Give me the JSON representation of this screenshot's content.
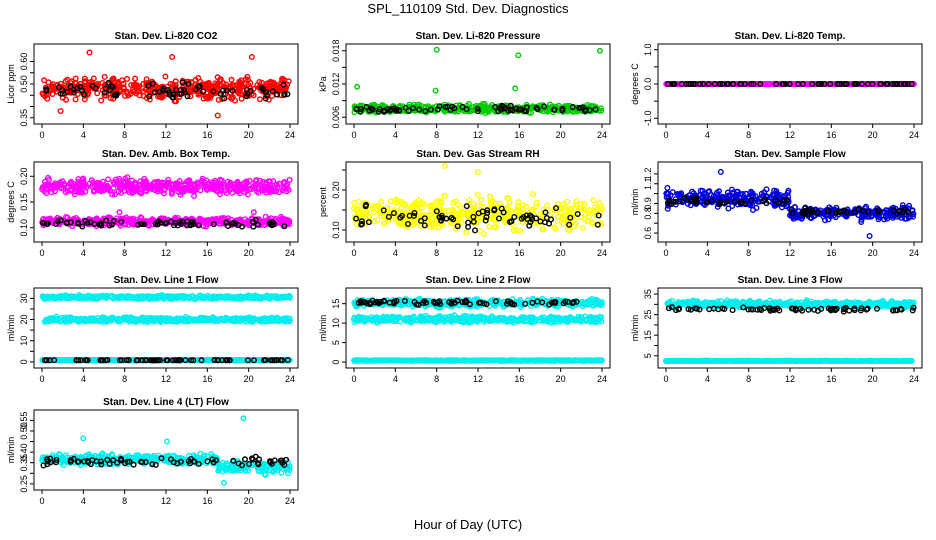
{
  "page": {
    "title": "SPL_110109  Std. Dev. Diagnostics",
    "x_title": "Hour of Day (UTC)"
  },
  "chart_data": [
    {
      "type": "scatter",
      "title": "Stan. Dev. Li-820 CO2",
      "ylabel": "Licor ppm",
      "xlim": [
        0,
        24
      ],
      "ylim": [
        0.34,
        0.66
      ],
      "x_ticks": [
        0,
        4,
        8,
        12,
        16,
        20,
        24
      ],
      "y_ticks": [
        0.35,
        0.4,
        0.45,
        0.5,
        0.55,
        0.6
      ],
      "y_tick_labels": [
        "0.35",
        "",
        "",
        "0.50",
        "",
        "0.60"
      ],
      "series": [
        {
          "color": "#ff0000",
          "bands": [
            {
              "x0": 0,
              "x1": 24,
              "mean": 0.48,
              "spread": 0.07
            }
          ],
          "outliers": [
            [
              4.6,
              0.64
            ],
            [
              20.3,
              0.62
            ],
            [
              12.6,
              0.62
            ],
            [
              17,
              0.36
            ],
            [
              1.8,
              0.38
            ]
          ]
        },
        {
          "color": "#000000",
          "bands": [
            {
              "x0": 0,
              "x1": 24,
              "mean": 0.47,
              "spread": 0.05
            }
          ],
          "outliers": []
        }
      ]
    },
    {
      "type": "scatter",
      "title": "Stan. Dev. Li-820 Pressure",
      "ylabel": "kPa",
      "xlim": [
        0,
        24
      ],
      "ylim": [
        0.0055,
        0.0185
      ],
      "x_ticks": [
        0,
        4,
        8,
        12,
        16,
        20,
        24
      ],
      "y_ticks": [
        0.006,
        0.009,
        0.012,
        0.015,
        0.018
      ],
      "y_tick_labels": [
        "0.006",
        "",
        "0.012",
        "",
        "0.018"
      ],
      "series": [
        {
          "color": "#00cc00",
          "bands": [
            {
              "x0": 0,
              "x1": 24,
              "mean": 0.0075,
              "spread": 0.0011
            }
          ],
          "outliers": [
            [
              0.3,
              0.0115
            ],
            [
              8,
              0.0182
            ],
            [
              7.9,
              0.0108
            ],
            [
              15.9,
              0.0172
            ],
            [
              15.6,
              0.0112
            ],
            [
              23.8,
              0.018
            ]
          ]
        },
        {
          "color": "#000000",
          "bands": [
            {
              "x0": 0,
              "x1": 24,
              "mean": 0.0075,
              "spread": 0.0008
            }
          ],
          "outliers": []
        }
      ]
    },
    {
      "type": "scatter",
      "title": "Stan. Dev. Li-820 Temp.",
      "ylabel": "degrees C",
      "xlim": [
        0,
        24
      ],
      "ylim": [
        -1.05,
        1.05
      ],
      "x_ticks": [
        0,
        4,
        8,
        12,
        16,
        20,
        24
      ],
      "y_ticks": [
        -1.0,
        -0.5,
        0.0,
        0.5,
        1.0
      ],
      "y_tick_labels": [
        "-1.0",
        "",
        "0.0",
        "",
        "1.0"
      ],
      "series": [
        {
          "color": "#ff00ff",
          "bands": [
            {
              "x0": 0,
              "x1": 24,
              "mean": 0.0,
              "spread": 0.0
            }
          ],
          "outliers": []
        },
        {
          "color": "#000000",
          "bands": [
            {
              "x0": 0,
              "x1": 24,
              "mean": 0.0,
              "spread": 0.0
            }
          ],
          "outliers": []
        }
      ]
    },
    {
      "type": "scatter",
      "title": "Stan. Dev. Amb. Box Temp.",
      "ylabel": "degrees C",
      "xlim": [
        0,
        24
      ],
      "ylim": [
        0.08,
        0.22
      ],
      "x_ticks": [
        0,
        4,
        8,
        12,
        16,
        20,
        24
      ],
      "y_ticks": [
        0.1,
        0.15,
        0.2
      ],
      "y_tick_labels": [
        "0.10",
        "0.15",
        "0.20"
      ],
      "series": [
        {
          "color": "#ff00ff",
          "bands": [
            {
              "x0": 0,
              "x1": 24,
              "mean": 0.18,
              "spread": 0.022
            },
            {
              "x0": 0,
              "x1": 24,
              "mean": 0.112,
              "spread": 0.012
            }
          ],
          "outliers": [
            [
              7.5,
              0.13
            ],
            [
              20.5,
              0.13
            ]
          ]
        },
        {
          "color": "#000000",
          "bands": [
            {
              "x0": 0,
              "x1": 24,
              "mean": 0.108,
              "spread": 0.01
            }
          ],
          "outliers": []
        }
      ]
    },
    {
      "type": "scatter",
      "title": "Stan. Dev. Gas Stream RH",
      "ylabel": "percent",
      "xlim": [
        0,
        24
      ],
      "ylim": [
        0.08,
        0.26
      ],
      "x_ticks": [
        0,
        4,
        8,
        12,
        16,
        20,
        24
      ],
      "y_ticks": [
        0.1,
        0.15,
        0.2,
        0.25
      ],
      "y_tick_labels": [
        "0.10",
        "",
        "0.20",
        ""
      ],
      "series": [
        {
          "color": "#ffff00",
          "bands": [
            {
              "x0": 0,
              "x1": 24,
              "mean": 0.14,
              "spread": 0.06
            }
          ],
          "outliers": [
            [
              8.8,
              0.26
            ],
            [
              12,
              0.245
            ]
          ]
        },
        {
          "color": "#000000",
          "bands": [
            {
              "x0": 0,
              "x1": 24,
              "mean": 0.13,
              "spread": 0.04
            }
          ],
          "outliers": []
        }
      ]
    },
    {
      "type": "scatter",
      "title": "Stan. Dev. Sample Flow",
      "ylabel": "ml/min",
      "xlim": [
        0,
        24
      ],
      "ylim": [
        0.55,
        1.28
      ],
      "x_ticks": [
        0,
        4,
        8,
        12,
        16,
        20,
        24
      ],
      "y_ticks": [
        0.6,
        0.7,
        0.8,
        0.9,
        1.0,
        1.1,
        1.2
      ],
      "y_tick_labels": [
        "0.6",
        "",
        "0.8",
        "0.9",
        "",
        "1.1",
        "1.2"
      ],
      "series": [
        {
          "color": "#0000dd",
          "bands": [
            {
              "x0": 0,
              "x1": 12,
              "mean": 0.95,
              "spread": 0.13
            },
            {
              "x0": 12,
              "x1": 24,
              "mean": 0.8,
              "spread": 0.1
            }
          ],
          "outliers": [
            [
              19.7,
              0.57
            ],
            [
              5.3,
              1.22
            ]
          ]
        },
        {
          "color": "#000000",
          "bands": [
            {
              "x0": 0,
              "x1": 12,
              "mean": 0.92,
              "spread": 0.05
            },
            {
              "x0": 12,
              "x1": 24,
              "mean": 0.82,
              "spread": 0.05
            }
          ],
          "outliers": []
        }
      ]
    },
    {
      "type": "scatter",
      "title": "Stan. Dev. Line 1 Flow",
      "ylabel": "ml/min",
      "xlim": [
        0,
        24
      ],
      "ylim": [
        -1,
        33
      ],
      "x_ticks": [
        0,
        4,
        8,
        12,
        16,
        20,
        24
      ],
      "y_ticks": [
        0,
        5,
        10,
        15,
        20,
        25,
        30
      ],
      "y_tick_labels": [
        "0",
        "",
        "10",
        "",
        "20",
        "",
        "30"
      ],
      "series": [
        {
          "color": "#00eeee",
          "bands": [
            {
              "x0": 0,
              "x1": 24,
              "mean": 30.5,
              "spread": 1.2
            },
            {
              "x0": 0,
              "x1": 24,
              "mean": 20,
              "spread": 1.6
            },
            {
              "x0": 0,
              "x1": 24,
              "mean": 0.8,
              "spread": 0.2
            }
          ],
          "outliers": []
        },
        {
          "color": "#000000",
          "bands": [
            {
              "x0": 0,
              "x1": 24,
              "mean": 0.8,
              "spread": 0.15
            }
          ],
          "outliers": []
        }
      ]
    },
    {
      "type": "scatter",
      "title": "Stan. Dev. Line 2 Flow",
      "ylabel": "ml/min",
      "xlim": [
        0,
        24
      ],
      "ylim": [
        -0.5,
        18
      ],
      "x_ticks": [
        0,
        4,
        8,
        12,
        16,
        20,
        24
      ],
      "y_ticks": [
        0,
        5,
        10,
        15
      ],
      "y_tick_labels": [
        "0",
        "5",
        "10",
        "15"
      ],
      "series": [
        {
          "color": "#00eeee",
          "bands": [
            {
              "x0": 0,
              "x1": 24,
              "mean": 15.2,
              "spread": 1.4
            },
            {
              "x0": 0,
              "x1": 24,
              "mean": 11,
              "spread": 1.2
            },
            {
              "x0": 0,
              "x1": 24,
              "mean": 0.4,
              "spread": 0.15
            }
          ],
          "outliers": []
        },
        {
          "color": "#000000",
          "bands": [
            {
              "x0": 0,
              "x1": 24,
              "mean": 15.3,
              "spread": 0.8
            }
          ],
          "outliers": []
        }
      ]
    },
    {
      "type": "scatter",
      "title": "Stan. Dev. Line 3 Flow",
      "ylabel": "ml/min",
      "xlim": [
        0,
        24
      ],
      "ylim": [
        1,
        36
      ],
      "x_ticks": [
        0,
        4,
        8,
        12,
        16,
        20,
        24
      ],
      "y_ticks": [
        5,
        10,
        15,
        20,
        25,
        30,
        35
      ],
      "y_tick_labels": [
        "5",
        "",
        "15",
        "",
        "25",
        "",
        "35"
      ],
      "series": [
        {
          "color": "#00eeee",
          "bands": [
            {
              "x0": 0,
              "x1": 24,
              "mean": 30,
              "spread": 2.5
            },
            {
              "x0": 0,
              "x1": 24,
              "mean": 2.5,
              "spread": 0.2
            }
          ],
          "outliers": []
        },
        {
          "color": "#000000",
          "bands": [
            {
              "x0": 0,
              "x1": 24,
              "mean": 27.5,
              "spread": 1.5
            }
          ],
          "outliers": []
        }
      ]
    },
    {
      "type": "scatter",
      "title": "Stan. Dev. Line 4 (LT) Flow",
      "ylabel": "ml/min",
      "xlim": [
        0,
        24
      ],
      "ylim": [
        0.24,
        0.58
      ],
      "x_ticks": [
        0,
        4,
        8,
        12,
        16,
        20,
        24
      ],
      "y_ticks": [
        0.25,
        0.3,
        0.35,
        0.4,
        0.45,
        0.5,
        0.55
      ],
      "y_tick_labels": [
        "0.25",
        "",
        "0.35",
        "0.40",
        "",
        "0.50",
        "0.55"
      ],
      "series": [
        {
          "color": "#00eeee",
          "bands": [
            {
              "x0": 0,
              "x1": 17,
              "mean": 0.365,
              "spread": 0.035
            },
            {
              "x0": 17,
              "x1": 24,
              "mean": 0.33,
              "spread": 0.045
            }
          ],
          "outliers": [
            [
              4,
              0.465
            ],
            [
              12.1,
              0.45
            ],
            [
              19.5,
              0.56
            ],
            [
              17.6,
              0.255
            ]
          ]
        },
        {
          "color": "#000000",
          "bands": [
            {
              "x0": 0,
              "x1": 24,
              "mean": 0.355,
              "spread": 0.03
            }
          ],
          "outliers": []
        }
      ]
    }
  ]
}
